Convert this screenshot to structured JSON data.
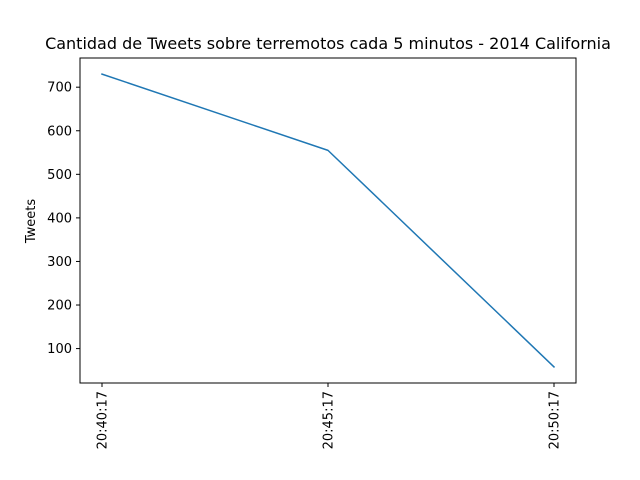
{
  "chart_data": {
    "type": "line",
    "title": "Cantidad de Tweets sobre terremotos cada 5 minutos - 2014 California",
    "xlabel": "",
    "ylabel": "Tweets",
    "categories": [
      "20:40:17",
      "20:45:17",
      "20:50:17"
    ],
    "series": [
      {
        "values": [
          730,
          555,
          58
        ]
      }
    ],
    "ylim": [
      21,
      767
    ],
    "yticks": [
      100,
      200,
      300,
      400,
      500,
      600,
      700
    ],
    "grid": false,
    "line_color": "#1f77b4"
  }
}
